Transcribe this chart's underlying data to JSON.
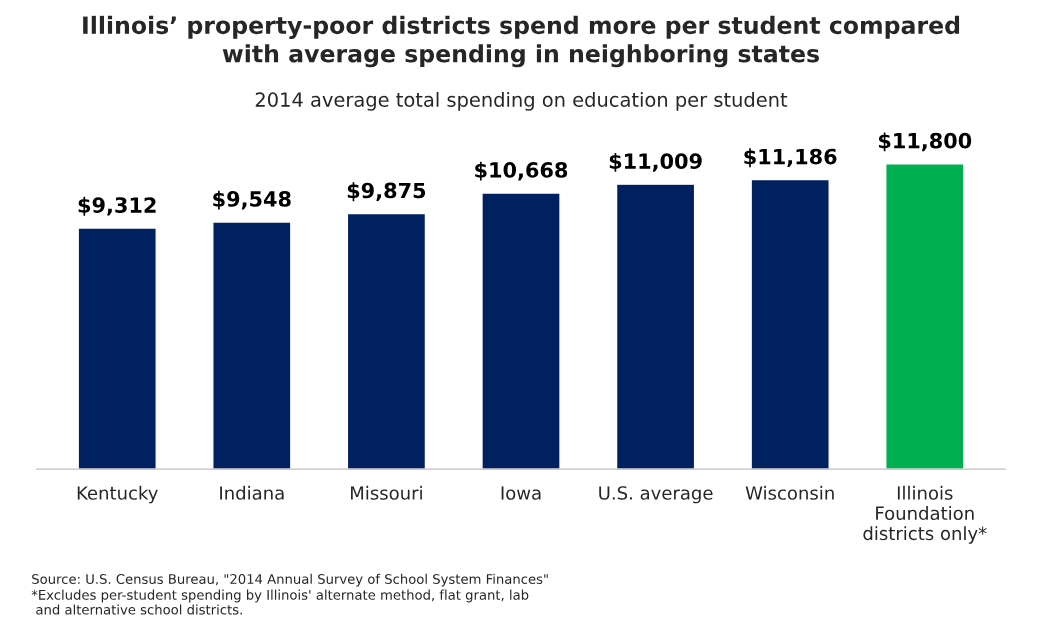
{
  "chart_data": {
    "type": "bar",
    "title": "Illinois’ property-poor districts spend more per student compared\nwith average spending in neighboring states",
    "subtitle": "2014 average total spending on education per student",
    "categories": [
      "Kentucky",
      "Indiana",
      "Missouri",
      "Iowa",
      "U.S. average",
      "Wisconsin",
      "Illinois\nFoundation\ndistricts only*"
    ],
    "values": [
      9312,
      9548,
      9875,
      10668,
      11009,
      11186,
      11800
    ],
    "colors": [
      "#002060",
      "#002060",
      "#002060",
      "#002060",
      "#002060",
      "#002060",
      "#00b050"
    ],
    "value_labels": [
      "$9,312",
      "$9,548",
      "$9,875",
      "$10,668",
      "$11,009",
      "$11,186",
      "$11,800"
    ],
    "tick_labels": "x",
    "grid": false,
    "legend": false,
    "annotations": [
      "Source: U.S. Census Bureau, \"2014 Annual Survey of School System Finances\"",
      "*Excludes per-student spending by Illinois' alternate method, flat grant, lab\n and alternative school districts."
    ]
  }
}
